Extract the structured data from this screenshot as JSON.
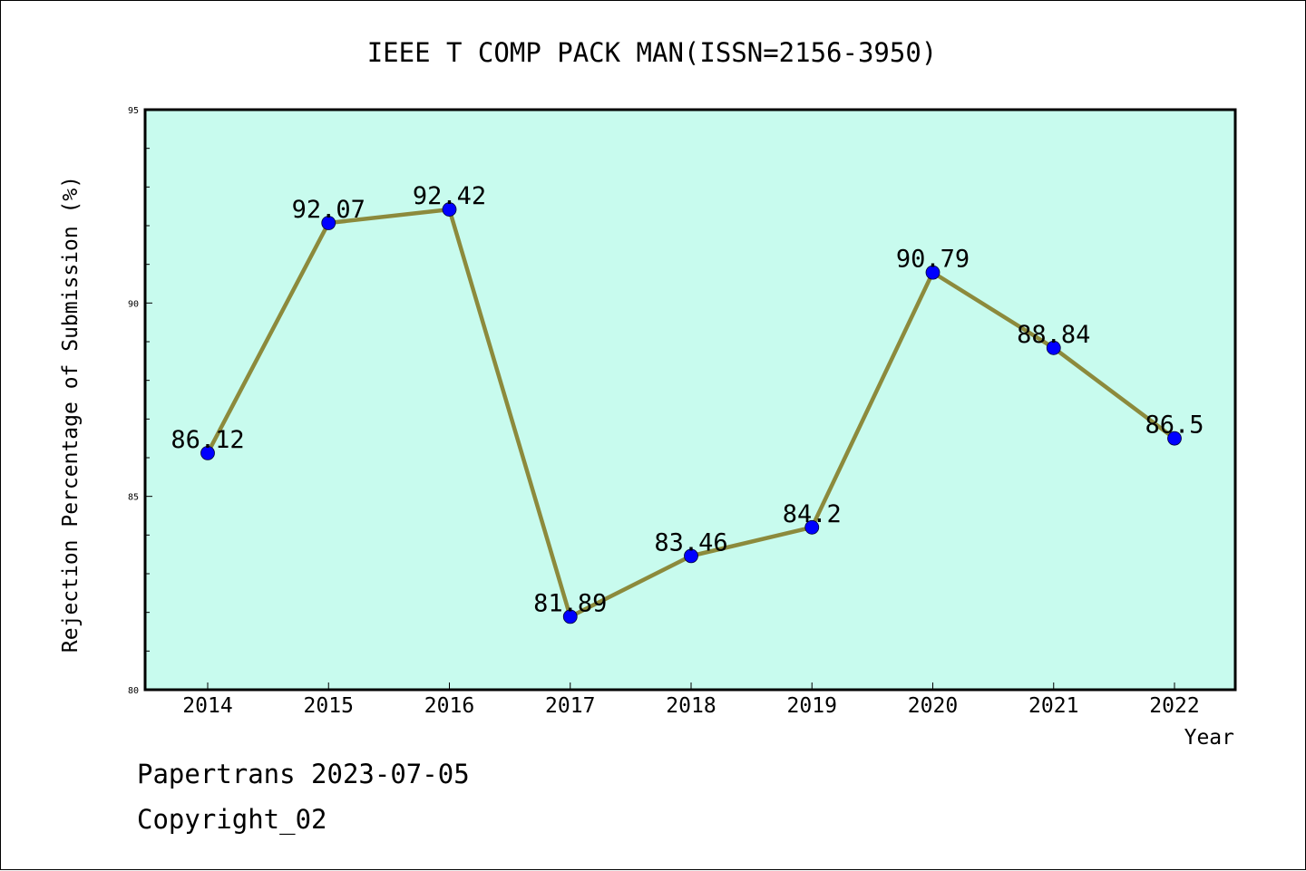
{
  "chart_data": {
    "type": "line",
    "title": "IEEE T COMP PACK MAN(ISSN=2156-3950)",
    "xlabel": "Year",
    "ylabel": "Rejection Percentage of Submission (%)",
    "categories": [
      "2014",
      "2015",
      "2016",
      "2017",
      "2018",
      "2019",
      "2020",
      "2021",
      "2022"
    ],
    "series": [
      {
        "values": [
          86.12,
          92.07,
          92.42,
          81.89,
          83.46,
          84.2,
          90.79,
          88.84,
          86.5
        ]
      }
    ],
    "data_labels": [
      "86.12",
      "92.07",
      "92.42",
      "81.89",
      "83.46",
      "84.2",
      "90.79",
      "88.84",
      "86.5"
    ],
    "ylim": [
      80,
      95
    ],
    "yticks": [
      "80",
      "85",
      "90",
      "95"
    ],
    "grid": false,
    "legend": "none",
    "colors": {
      "plot_background": "#c8fbee",
      "line": "#8c8a3c",
      "marker": "#0000ff"
    }
  },
  "footer": {
    "line1": "Papertrans 2023-07-05",
    "line2": "Copyright_02"
  }
}
